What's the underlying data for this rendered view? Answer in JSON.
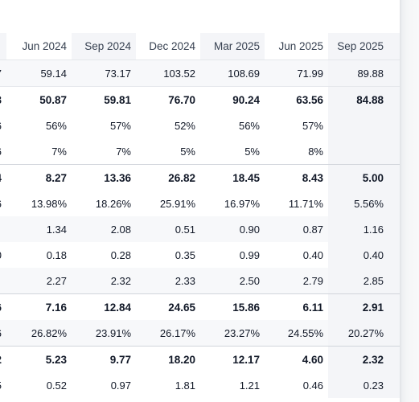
{
  "table": {
    "headers": [
      "",
      "Jun 2024",
      "Sep 2024",
      "Dec 2024",
      "Mar 2025",
      "Jun 2025",
      "Sep 2025"
    ],
    "rows": [
      {
        "style": "alt",
        "cells": [
          "7",
          "59.14",
          "73.17",
          "103.52",
          "108.69",
          "71.99",
          "89.88"
        ]
      },
      {
        "style": "bold",
        "cells": [
          "3",
          "50.87",
          "59.81",
          "76.70",
          "90.24",
          "63.56",
          "84.88"
        ]
      },
      {
        "style": "plain",
        "cells": [
          "6",
          "56%",
          "57%",
          "52%",
          "56%",
          "57%",
          ""
        ]
      },
      {
        "style": "plain",
        "cells": [
          "6",
          "7%",
          "7%",
          "5%",
          "5%",
          "8%",
          ""
        ]
      },
      {
        "style": "bold",
        "cells": [
          "4",
          "8.27",
          "13.36",
          "26.82",
          "18.45",
          "8.43",
          "5.00"
        ]
      },
      {
        "style": "plain",
        "cells": [
          "6",
          "13.98%",
          "18.26%",
          "25.91%",
          "16.97%",
          "11.71%",
          "5.56%"
        ]
      },
      {
        "style": "alt",
        "cells": [
          "",
          "1.34",
          "2.08",
          "0.51",
          "0.90",
          "0.87",
          "1.16"
        ]
      },
      {
        "style": "plain",
        "cells": [
          "0",
          "0.18",
          "0.28",
          "0.35",
          "0.99",
          "0.40",
          "0.40"
        ]
      },
      {
        "style": "alt",
        "cells": [
          "",
          "2.27",
          "2.32",
          "2.33",
          "2.50",
          "2.79",
          "2.85"
        ]
      },
      {
        "style": "bold",
        "cells": [
          "6",
          "7.16",
          "12.84",
          "24.65",
          "15.86",
          "6.11",
          "2.91"
        ]
      },
      {
        "style": "alt",
        "cells": [
          "6",
          "26.82%",
          "23.91%",
          "26.17%",
          "23.27%",
          "24.55%",
          "20.27%"
        ]
      },
      {
        "style": "bold",
        "cells": [
          "2",
          "5.23",
          "9.77",
          "18.20",
          "12.17",
          "4.60",
          "2.32"
        ]
      },
      {
        "style": "plain",
        "cells": [
          "5",
          "0.52",
          "0.97",
          "1.81",
          "1.21",
          "0.46",
          "0.23"
        ]
      }
    ]
  }
}
